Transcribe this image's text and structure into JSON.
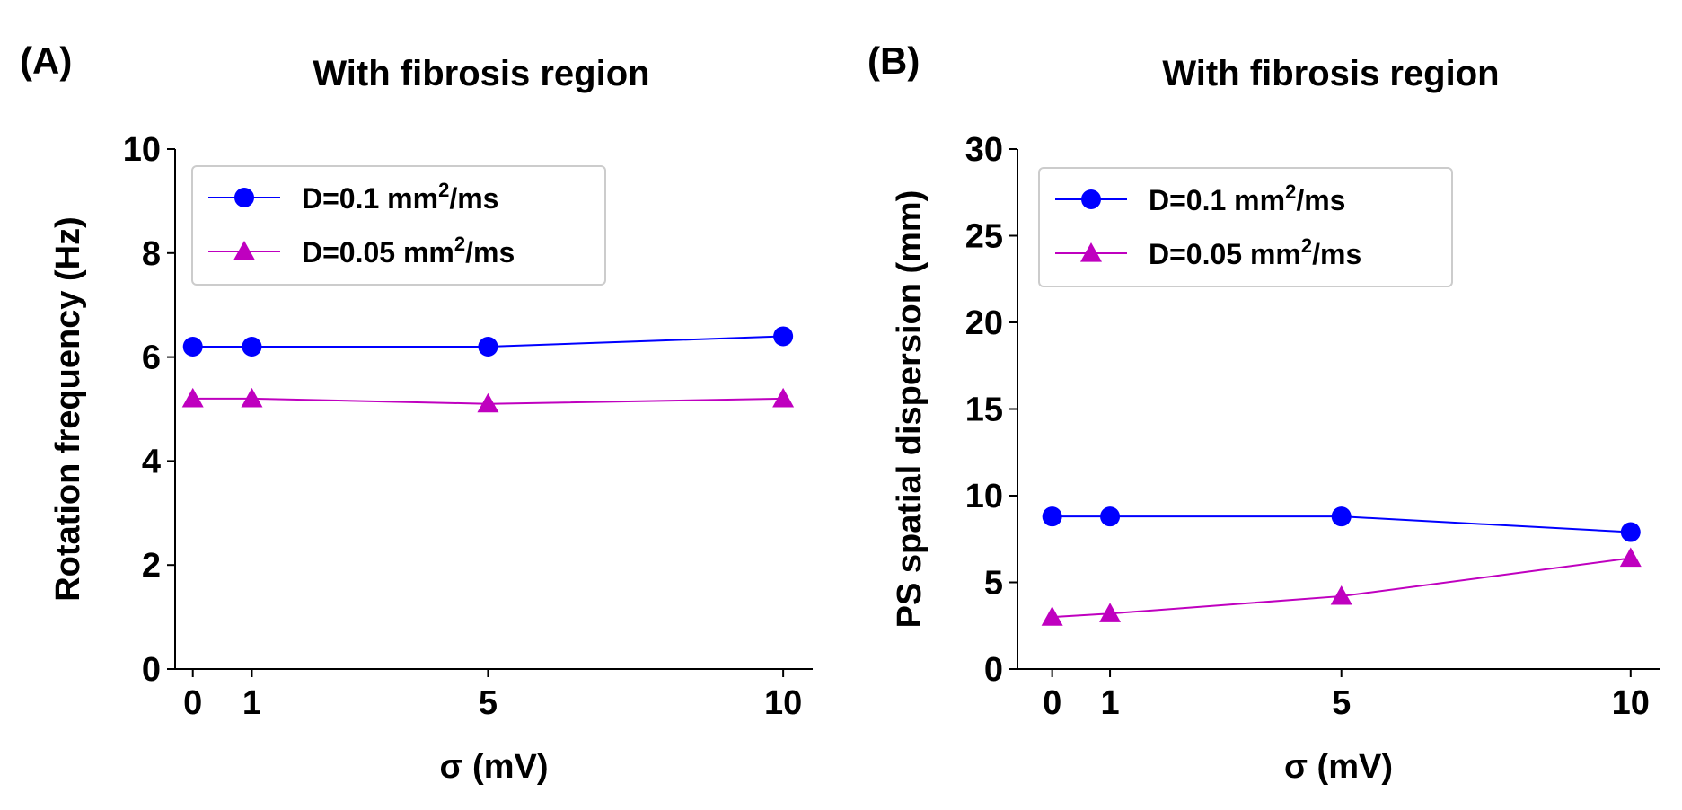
{
  "chart_data": [
    {
      "type": "line",
      "panel_label": "(A)",
      "title": "With fibrosis region",
      "xlabel": "σ (mV)",
      "ylabel": "Rotation frequency (Hz)",
      "x": [
        0,
        1,
        5,
        10
      ],
      "x_ticks": [
        0,
        1,
        5,
        10
      ],
      "xlim": [
        -0.3,
        10.5
      ],
      "ylim": [
        0,
        10
      ],
      "y_ticks": [
        0,
        2,
        4,
        6,
        8,
        10
      ],
      "legend_position": "upper-left",
      "series": [
        {
          "name_main": "D=0.1 mm",
          "name_sup": "2",
          "name_tail": "/ms",
          "marker": "circle",
          "color": "#0000ff",
          "values": [
            6.2,
            6.2,
            6.2,
            6.4
          ]
        },
        {
          "name_main": "D=0.05 mm",
          "name_sup": "2",
          "name_tail": "/ms",
          "marker": "triangle",
          "color": "#bf00bf",
          "values": [
            5.2,
            5.2,
            5.1,
            5.2
          ]
        }
      ]
    },
    {
      "type": "line",
      "panel_label": "(B)",
      "title": "With fibrosis region",
      "xlabel": "σ (mV)",
      "ylabel": "PS spatial dispersion (mm)",
      "x": [
        0,
        1,
        5,
        10
      ],
      "x_ticks": [
        0,
        1,
        5,
        10
      ],
      "xlim": [
        -0.6,
        10.5
      ],
      "ylim": [
        0,
        30
      ],
      "y_ticks": [
        0,
        5,
        10,
        15,
        20,
        25,
        30
      ],
      "legend_position": "upper-left",
      "series": [
        {
          "name_main": "D=0.1 mm",
          "name_sup": "2",
          "name_tail": "/ms",
          "marker": "circle",
          "color": "#0000ff",
          "values": [
            8.8,
            8.8,
            8.8,
            7.9
          ]
        },
        {
          "name_main": "D=0.05 mm",
          "name_sup": "2",
          "name_tail": "/ms",
          "marker": "triangle",
          "color": "#bf00bf",
          "values": [
            3.0,
            3.2,
            4.2,
            6.4
          ]
        }
      ]
    }
  ]
}
